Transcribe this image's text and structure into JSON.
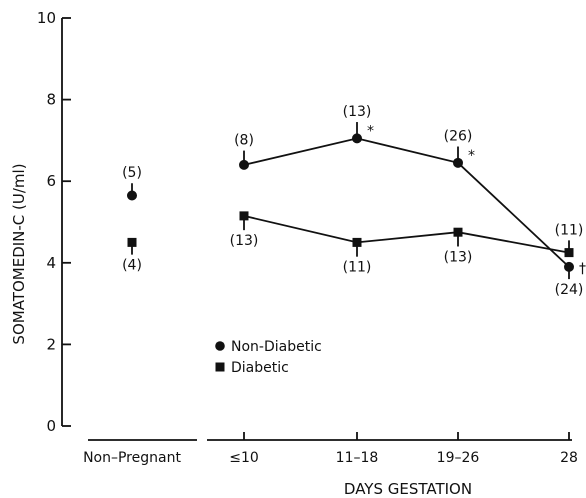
{
  "chart_data": {
    "type": "scatter",
    "title": "",
    "ylabel": "SOMATOMEDIN-C (U/ml)",
    "xlabel": "DAYS GESTATION",
    "ylim": [
      0,
      10
    ],
    "yticks": [
      "0",
      "2",
      "4",
      "6",
      "8",
      "10"
    ],
    "categories": [
      "Non-Pregnant",
      "≤10",
      "11-18",
      "19-26",
      "28"
    ],
    "connected_from_category": 1,
    "grid": false,
    "legend_position": "lower-left",
    "series": [
      {
        "name": "Non-Diabetic",
        "marker": "circle",
        "values": [
          5.65,
          6.4,
          7.05,
          6.45,
          3.9
        ],
        "sem": [
          0.3,
          0.35,
          0.4,
          0.4,
          0.3
        ],
        "error_dir": [
          "up",
          "up",
          "up",
          "up",
          "down"
        ],
        "n_labels": [
          "(5)",
          "(8)",
          "(13)",
          "(26)",
          "(24)"
        ],
        "n_pos": [
          "above",
          "above",
          "above",
          "above",
          "below"
        ],
        "significance": [
          "",
          "",
          "*",
          "*",
          "†"
        ]
      },
      {
        "name": "Diabetic",
        "marker": "square",
        "values": [
          4.5,
          5.15,
          4.5,
          4.75,
          4.25
        ],
        "sem": [
          0.3,
          0.35,
          0.35,
          0.35,
          0.3
        ],
        "error_dir": [
          "down",
          "down",
          "down",
          "down",
          "up"
        ],
        "n_labels": [
          "(4)",
          "(13)",
          "(11)",
          "(13)",
          "(11)"
        ],
        "n_pos": [
          "below",
          "below",
          "below",
          "below",
          "above"
        ],
        "significance": [
          "",
          "",
          "",
          "",
          ""
        ]
      }
    ],
    "legend": [
      "Non-Diabetic",
      "Diabetic"
    ]
  }
}
